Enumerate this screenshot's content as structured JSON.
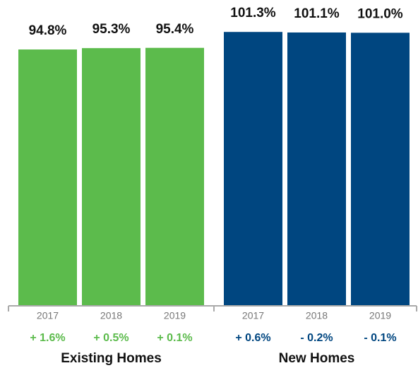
{
  "chart_data": {
    "type": "bar",
    "ylim": [
      0,
      110
    ],
    "groups": [
      {
        "name": "Existing Homes",
        "color": "#5cbb4c",
        "categories": [
          "2017",
          "2018",
          "2019"
        ],
        "values": [
          94.8,
          95.3,
          95.4
        ],
        "value_labels": [
          "94.8%",
          "95.3%",
          "95.4%"
        ],
        "change_labels": [
          "+ 1.6%",
          "+ 0.5%",
          "+ 0.1%"
        ]
      },
      {
        "name": "New Homes",
        "color": "#004680",
        "categories": [
          "2017",
          "2018",
          "2019"
        ],
        "values": [
          101.3,
          101.1,
          101.0
        ],
        "value_labels": [
          "101.3%",
          "101.1%",
          "101.0%"
        ],
        "change_labels": [
          "+ 0.6%",
          "- 0.2%",
          "- 0.1%"
        ]
      }
    ]
  }
}
